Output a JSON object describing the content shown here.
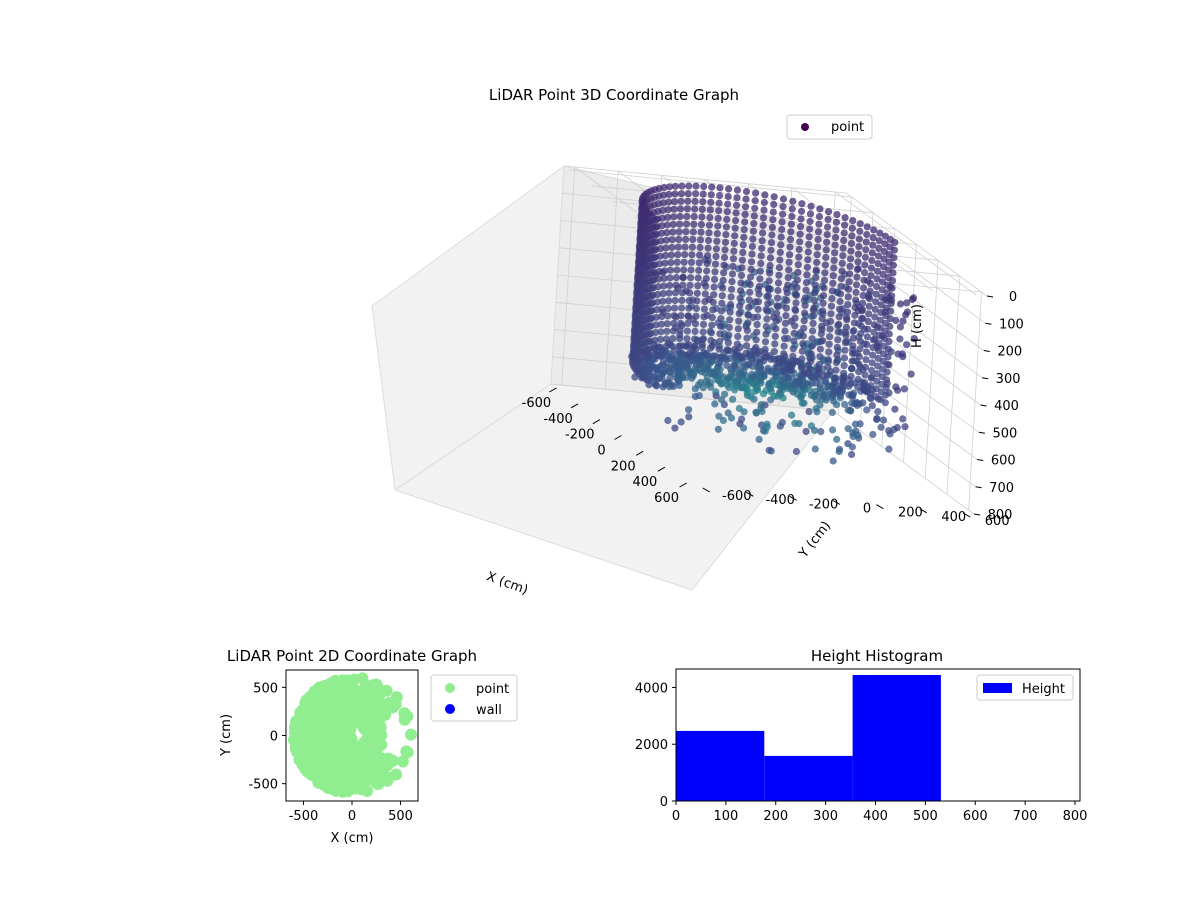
{
  "figure": {
    "background": "#ffffff"
  },
  "chart_data": [
    {
      "type": "scatter",
      "subtype": "3d",
      "title": "LiDAR Point 3D Coordinate Graph",
      "xlabel": "X (cm)",
      "ylabel": "Y (cm)",
      "zlabel": "H (cm)",
      "xlim": [
        -650,
        650
      ],
      "ylim": [
        -650,
        650
      ],
      "zlim": [
        0,
        800
      ],
      "z_inverted": true,
      "xticks": [
        -600,
        -400,
        -200,
        0,
        200,
        400,
        600
      ],
      "yticks": [
        -600,
        -400,
        -200,
        0,
        200,
        400,
        600
      ],
      "zticks": [
        0,
        100,
        200,
        300,
        400,
        500,
        600,
        700,
        800
      ],
      "colormap": "viridis",
      "grid": true,
      "legend": {
        "position": "top-right",
        "entries": [
          {
            "label": "point",
            "color": "#440154"
          }
        ]
      },
      "series": [
        {
          "name": "point",
          "shape": "half-cylinder",
          "radius_cm": 550,
          "angle_range_deg": [
            90,
            270
          ],
          "height_range_cm": [
            0,
            600
          ]
        },
        {
          "name": "point",
          "shape": "scattered-right-half",
          "radius_range_cm": [
            150,
            600
          ],
          "height_range_cm": [
            100,
            700
          ]
        }
      ]
    },
    {
      "type": "scatter",
      "title": "LiDAR Point 2D Coordinate Graph",
      "xlabel": "X (cm)",
      "ylabel": "Y (cm)",
      "xlim": [
        -680,
        680
      ],
      "ylim": [
        -680,
        680
      ],
      "xticks": [
        -500,
        0,
        500
      ],
      "yticks": [
        -500,
        0,
        500
      ],
      "legend": {
        "position": "outside-right",
        "entries": [
          {
            "label": "point",
            "color": "#90ee90"
          },
          {
            "label": "wall",
            "color": "#0000ff"
          }
        ]
      },
      "series": [
        {
          "name": "point",
          "color": "#90ee90",
          "shape": "left-disc-plus-right-fragments",
          "radius_cm": 600
        },
        {
          "name": "wall",
          "color": "#0000ff",
          "values": []
        }
      ]
    },
    {
      "type": "bar",
      "subtype": "histogram",
      "title": "Height Histogram",
      "xlim": [
        0,
        810
      ],
      "ylim": [
        0,
        4650
      ],
      "xticks": [
        0,
        100,
        200,
        300,
        400,
        500,
        600,
        700,
        800
      ],
      "yticks": [
        0,
        2000,
        4000
      ],
      "legend": {
        "position": "top-right",
        "entries": [
          {
            "label": "Height",
            "color": "#0000ff"
          }
        ]
      },
      "series": [
        {
          "name": "Height",
          "color": "#0000ff",
          "bins": [
            {
              "x0": 0,
              "x1": 177,
              "count": 2470
            },
            {
              "x0": 177,
              "x1": 354,
              "count": 1590
            },
            {
              "x0": 354,
              "x1": 531,
              "count": 4440
            }
          ]
        }
      ]
    }
  ]
}
